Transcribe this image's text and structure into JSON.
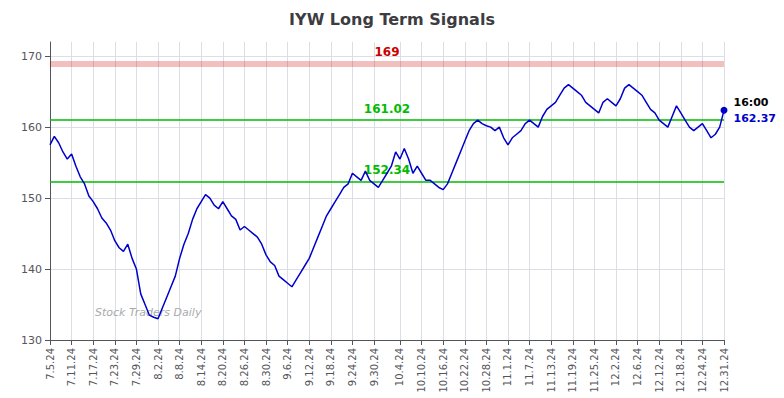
{
  "chart_data": {
    "type": "line",
    "title": "IYW Long Term Signals",
    "categories": [
      "7.5.24",
      null,
      null,
      null,
      null,
      "7.11.24",
      null,
      null,
      null,
      null,
      "7.17.24",
      null,
      null,
      null,
      null,
      "7.23.24",
      null,
      null,
      null,
      null,
      "7.29.24",
      null,
      null,
      null,
      null,
      "8.2.24",
      null,
      null,
      null,
      null,
      "8.8.24",
      null,
      null,
      null,
      null,
      "8.14.24",
      null,
      null,
      null,
      null,
      "8.20.24",
      null,
      null,
      null,
      null,
      "8.26.24",
      null,
      null,
      null,
      null,
      "8.30.24",
      null,
      null,
      null,
      null,
      "9.6.24",
      null,
      null,
      null,
      null,
      "9.12.24",
      null,
      null,
      null,
      null,
      "9.18.24",
      null,
      null,
      null,
      null,
      "9.24.24",
      null,
      null,
      null,
      null,
      "9.30.24",
      null,
      null,
      null,
      null,
      null,
      "10.4.24",
      null,
      null,
      null,
      null,
      "10.10.24",
      null,
      null,
      null,
      null,
      "10.16.24",
      null,
      null,
      null,
      null,
      "10.22.24",
      null,
      null,
      null,
      null,
      "10.28.24",
      null,
      null,
      null,
      null,
      "11.1.24",
      null,
      null,
      null,
      null,
      "11.7.24",
      null,
      null,
      null,
      null,
      "11.13.24",
      null,
      null,
      null,
      null,
      "11.19.24",
      null,
      null,
      null,
      null,
      "11.25.24",
      null,
      null,
      null,
      null,
      "12.2.24",
      null,
      null,
      null,
      null,
      "12.6.24",
      null,
      null,
      null,
      null,
      "12.12.24",
      null,
      null,
      null,
      null,
      "12.18.24",
      null,
      null,
      null,
      null,
      "12.24.24",
      null,
      null,
      null,
      null,
      "12.31.24"
    ],
    "values": [
      157.5,
      158.7,
      157.8,
      156.5,
      155.5,
      156.2,
      154.5,
      153.0,
      152.0,
      150.3,
      149.5,
      148.5,
      147.2,
      146.5,
      145.5,
      144.0,
      143.0,
      142.5,
      143.5,
      141.5,
      140.0,
      136.5,
      135.0,
      133.5,
      133.2,
      133.0,
      134.5,
      136.0,
      137.5,
      139.0,
      141.5,
      143.5,
      145.0,
      147.0,
      148.5,
      149.5,
      150.5,
      150.0,
      149.0,
      148.5,
      149.5,
      148.5,
      147.5,
      147.0,
      145.5,
      146.0,
      145.5,
      145.0,
      144.5,
      143.5,
      142.0,
      141.0,
      140.5,
      139.0,
      138.5,
      138.0,
      137.5,
      138.5,
      139.5,
      140.5,
      141.5,
      143.0,
      144.5,
      146.0,
      147.5,
      148.5,
      149.5,
      150.5,
      151.5,
      152.0,
      153.5,
      153.0,
      152.5,
      153.8,
      152.5,
      152.0,
      151.5,
      152.5,
      153.5,
      154.5,
      156.5,
      155.5,
      157.0,
      155.5,
      153.5,
      154.5,
      153.5,
      152.5,
      152.5,
      152.0,
      151.5,
      151.2,
      152.0,
      153.5,
      155.0,
      156.5,
      158.0,
      159.5,
      160.5,
      161.0,
      160.5,
      160.2,
      160.0,
      159.5,
      160.0,
      158.5,
      157.5,
      158.5,
      159.0,
      159.5,
      160.5,
      161.0,
      160.5,
      160.0,
      161.5,
      162.5,
      163.0,
      163.5,
      164.5,
      165.5,
      166.0,
      165.5,
      165.0,
      164.5,
      163.5,
      163.0,
      162.5,
      162.0,
      163.5,
      164.0,
      163.5,
      163.0,
      164.0,
      165.5,
      166.0,
      165.5,
      165.0,
      164.5,
      163.5,
      162.5,
      162.0,
      161.0,
      160.5,
      160.0,
      161.5,
      163.0,
      162.0,
      161.0,
      160.0,
      159.5,
      160.0,
      160.5,
      159.5,
      158.5,
      159.0,
      160.0,
      162.37
    ],
    "color": "#0000cc",
    "ylim": [
      130,
      172
    ],
    "yticks": [
      130,
      140,
      150,
      160,
      170
    ],
    "grid": true,
    "hlines": [
      {
        "value": 169,
        "label": "169",
        "color": "#cc0000"
      },
      {
        "value": 161.02,
        "label": "161.02",
        "color": "#00bb00"
      },
      {
        "value": 152.34,
        "label": "152.34",
        "color": "#00bb00"
      }
    ],
    "end_labels": [
      {
        "text": "16:00",
        "color": "#000000"
      },
      {
        "text": "162.37",
        "color": "#0000cc"
      }
    ],
    "watermark": "Stock Traders Daily"
  }
}
